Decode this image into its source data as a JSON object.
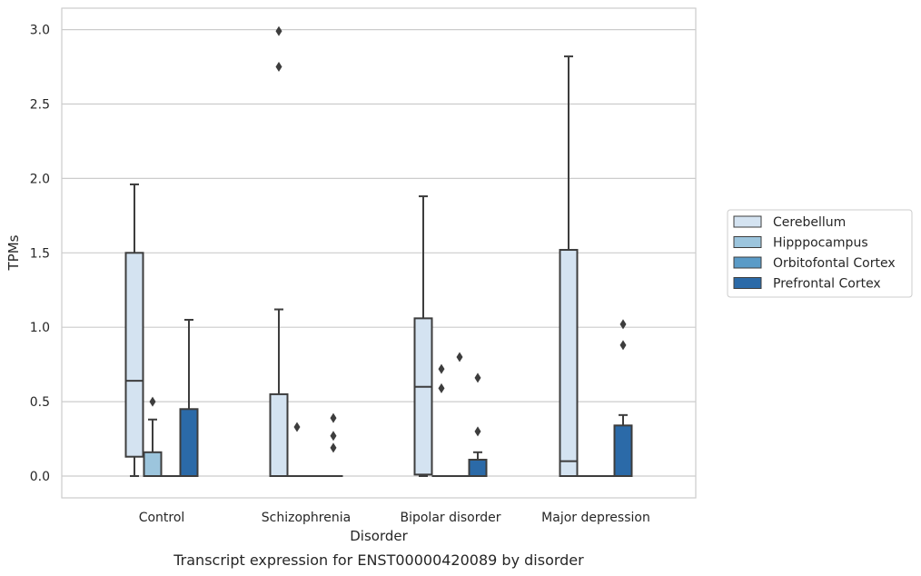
{
  "chart_data": {
    "type": "box",
    "title": "",
    "caption": "Transcript expression for ENST00000420089 by disorder",
    "xlabel": "Disorder",
    "ylabel": "TPMs",
    "ylim": [
      -0.15,
      3.15
    ],
    "y_ticks": [
      0.0,
      0.5,
      1.0,
      1.5,
      2.0,
      2.5,
      3.0
    ],
    "y_tick_labels": [
      "0.0",
      "0.5",
      "1.0",
      "1.5",
      "2.0",
      "2.5",
      "3.0"
    ],
    "grid": "horizontal",
    "legend_position": "right",
    "categories": [
      "Control",
      "Schizophrenia",
      "Bipolar disorder",
      "Major depression"
    ],
    "series": [
      {
        "name": "Cerebellum",
        "color": "#d4e3f1",
        "boxes": [
          {
            "low": 0.0,
            "q1": 0.13,
            "median": 0.64,
            "q3": 1.5,
            "high": 1.96,
            "outliers": []
          },
          {
            "low": 0.0,
            "q1": 0.0,
            "median": 0.0,
            "q3": 0.55,
            "high": 1.12,
            "outliers": [
              2.75,
              2.99
            ]
          },
          {
            "low": 0.0,
            "q1": 0.01,
            "median": 0.6,
            "q3": 1.06,
            "high": 1.88,
            "outliers": []
          },
          {
            "low": 0.0,
            "q1": 0.0,
            "median": 0.1,
            "q3": 1.52,
            "high": 2.82,
            "outliers": []
          }
        ]
      },
      {
        "name": "Hipppocampus",
        "color": "#9cc5dd",
        "boxes": [
          {
            "low": 0.0,
            "q1": 0.0,
            "median": 0.0,
            "q3": 0.16,
            "high": 0.38,
            "outliers": [
              0.5
            ]
          },
          {
            "low": 0.0,
            "q1": 0.0,
            "median": 0.0,
            "q3": 0.0,
            "high": 0.0,
            "outliers": [
              0.33
            ]
          },
          {
            "low": 0.0,
            "q1": 0.0,
            "median": 0.0,
            "q3": 0.0,
            "high": 0.0,
            "outliers": [
              0.59,
              0.72
            ]
          },
          {
            "low": 0.0,
            "q1": 0.0,
            "median": 0.0,
            "q3": 0.0,
            "high": 0.0,
            "outliers": []
          }
        ]
      },
      {
        "name": "Orbitofontal Cortex",
        "color": "#5a9bc7",
        "boxes": [
          {
            "low": 0.0,
            "q1": 0.0,
            "median": 0.0,
            "q3": 0.0,
            "high": 0.0,
            "outliers": []
          },
          {
            "low": 0.0,
            "q1": 0.0,
            "median": 0.0,
            "q3": 0.0,
            "high": 0.0,
            "outliers": []
          },
          {
            "low": 0.0,
            "q1": 0.0,
            "median": 0.0,
            "q3": 0.0,
            "high": 0.0,
            "outliers": [
              0.8
            ]
          },
          {
            "low": 0.0,
            "q1": 0.0,
            "median": 0.0,
            "q3": 0.0,
            "high": 0.0,
            "outliers": []
          }
        ]
      },
      {
        "name": "Prefrontal Cortex",
        "color": "#2b6aa8",
        "boxes": [
          {
            "low": 0.0,
            "q1": 0.0,
            "median": 0.0,
            "q3": 0.45,
            "high": 1.05,
            "outliers": []
          },
          {
            "low": 0.0,
            "q1": 0.0,
            "median": 0.0,
            "q3": 0.0,
            "high": 0.0,
            "outliers": [
              0.19,
              0.27,
              0.39
            ]
          },
          {
            "low": 0.0,
            "q1": 0.0,
            "median": 0.0,
            "q3": 0.11,
            "high": 0.16,
            "outliers": [
              0.3,
              0.66
            ]
          },
          {
            "low": 0.0,
            "q1": 0.0,
            "median": 0.0,
            "q3": 0.34,
            "high": 0.41,
            "outliers": [
              0.88,
              1.02
            ]
          }
        ]
      }
    ]
  }
}
